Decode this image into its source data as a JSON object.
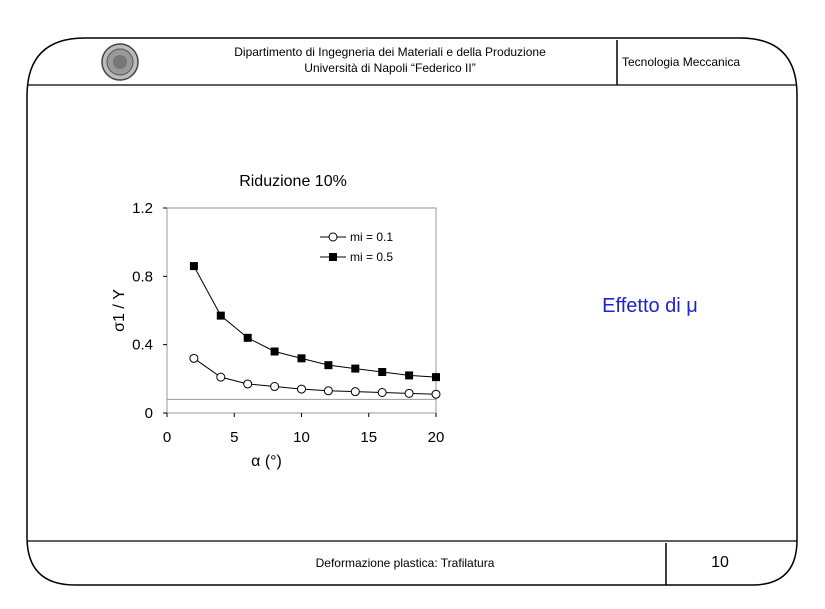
{
  "header": {
    "line1": "Dipartimento di Ingegneria dei Materiali e della Produzione",
    "line2": "Università di Napoli “Federico II”",
    "course": "Tecnologia Meccanica"
  },
  "footer": {
    "text": "Deformazione plastica: Trafilatura",
    "page": "10"
  },
  "side_text": "Effetto di μ",
  "chart_data": {
    "type": "line",
    "title": "Riduzione 10%",
    "xlabel": "α (°)",
    "ylabel": "σ1 / Y",
    "xlim": [
      0,
      20
    ],
    "ylim": [
      0,
      1.2
    ],
    "xticks": [
      "0",
      "5",
      "10",
      "15",
      "20"
    ],
    "yticks": [
      "0",
      "0.4",
      "0.8",
      "1.2"
    ],
    "x": [
      2,
      4,
      6,
      8,
      10,
      12,
      14,
      16,
      18,
      20
    ],
    "series": [
      {
        "name": "mi = 0.1",
        "marker": "circle-open",
        "values": [
          0.32,
          0.21,
          0.17,
          0.155,
          0.14,
          0.13,
          0.125,
          0.12,
          0.115,
          0.11
        ]
      },
      {
        "name": "mi = 0.5",
        "marker": "square-filled",
        "values": [
          0.86,
          0.57,
          0.44,
          0.36,
          0.32,
          0.28,
          0.26,
          0.24,
          0.22,
          0.21
        ]
      }
    ],
    "reference_line": 0.08,
    "grid": false,
    "legend": "top-right"
  }
}
